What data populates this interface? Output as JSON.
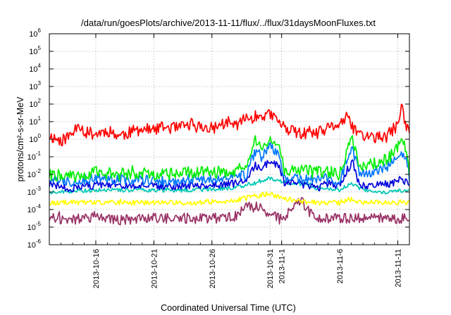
{
  "chart_data": {
    "type": "line",
    "title": "/data/run/goesPlots/archive/2013-11-11/flux/../flux/31daysMoonFluxes.txt",
    "xlabel": "Coordinated Universal Time (UTC)",
    "ylabel": "protons/cm²-s-sr-MeV",
    "yscale": "log",
    "ylim_exponents": [
      -6,
      6
    ],
    "yticks": [
      {
        "base": "10",
        "exp": "-6"
      },
      {
        "base": "10",
        "exp": "-5"
      },
      {
        "base": "10",
        "exp": "-4"
      },
      {
        "base": "10",
        "exp": "-3"
      },
      {
        "base": "10",
        "exp": "-2"
      },
      {
        "base": "10",
        "exp": "-1"
      },
      {
        "base": "10",
        "exp": "0"
      },
      {
        "base": "10",
        "exp": "1"
      },
      {
        "base": "10",
        "exp": "2"
      },
      {
        "base": "10",
        "exp": "3"
      },
      {
        "base": "10",
        "exp": "4"
      },
      {
        "base": "10",
        "exp": "5"
      },
      {
        "base": "10",
        "exp": "6"
      }
    ],
    "xlim_days": [
      0,
      31
    ],
    "xticks": [
      {
        "day": 4,
        "label": "2013-10-16"
      },
      {
        "day": 9,
        "label": "2013-10-21"
      },
      {
        "day": 14,
        "label": "2013-10-26"
      },
      {
        "day": 19,
        "label": "2013-10-31"
      },
      {
        "day": 20,
        "label": "2013-11-1"
      },
      {
        "day": 25,
        "label": "2013-11-6"
      },
      {
        "day": 30,
        "label": "2013-11-11"
      }
    ],
    "grid": true,
    "series": [
      {
        "color": "#ff0000",
        "anchors_log10": [
          [
            0,
            0.2
          ],
          [
            1,
            -0.1
          ],
          [
            2,
            0.3
          ],
          [
            2.5,
            1.0
          ],
          [
            3,
            0.4
          ],
          [
            4,
            0.3
          ],
          [
            5,
            0.5
          ],
          [
            6,
            0.2
          ],
          [
            7,
            0.4
          ],
          [
            8,
            0.6
          ],
          [
            9,
            0.5
          ],
          [
            10,
            0.7
          ],
          [
            11,
            0.6
          ],
          [
            12,
            0.8
          ],
          [
            13,
            0.7
          ],
          [
            14,
            0.6
          ],
          [
            15,
            0.9
          ],
          [
            16,
            0.8
          ],
          [
            17,
            1.2
          ],
          [
            18,
            1.3
          ],
          [
            18.5,
            1.4
          ],
          [
            19.3,
            1.3
          ],
          [
            20,
            0.8
          ],
          [
            21,
            0.4
          ],
          [
            22,
            0.3
          ],
          [
            23,
            0.3
          ],
          [
            24,
            0.6
          ],
          [
            25,
            0.9
          ],
          [
            25.6,
            1.2
          ],
          [
            26,
            0.8
          ],
          [
            26.5,
            0.4
          ],
          [
            27,
            0.2
          ],
          [
            28,
            0.1
          ],
          [
            29,
            0.1
          ],
          [
            29.5,
            0.5
          ],
          [
            30,
            0.8
          ],
          [
            30.4,
            2.0
          ],
          [
            30.6,
            0.9
          ],
          [
            31,
            0.3
          ]
        ],
        "noise": 0.35,
        "seed": 11
      },
      {
        "color": "#00ee00",
        "anchors_log10": [
          [
            0,
            -2.0
          ],
          [
            2,
            -2.1
          ],
          [
            4,
            -1.9
          ],
          [
            6,
            -2.0
          ],
          [
            8,
            -1.9
          ],
          [
            10,
            -2.0
          ],
          [
            12,
            -1.9
          ],
          [
            14,
            -1.9
          ],
          [
            16,
            -1.8
          ],
          [
            17,
            -1.6
          ],
          [
            17.7,
            -0.1
          ],
          [
            18.3,
            -0.6
          ],
          [
            19,
            0.1
          ],
          [
            19.8,
            -0.6
          ],
          [
            20.3,
            -1.9
          ],
          [
            21,
            -1.6
          ],
          [
            22,
            -1.8
          ],
          [
            23,
            -1.9
          ],
          [
            24,
            -1.8
          ],
          [
            25,
            -2.0
          ],
          [
            25.6,
            -0.7
          ],
          [
            26.1,
            -0.1
          ],
          [
            26.7,
            -1.7
          ],
          [
            27.5,
            -1.5
          ],
          [
            28.5,
            -1.3
          ],
          [
            29.5,
            -0.9
          ],
          [
            30.2,
            -0.2
          ],
          [
            30.8,
            -0.5
          ],
          [
            31,
            -2.0
          ]
        ],
        "noise": 0.35,
        "seed": 22
      },
      {
        "color": "#0077ff",
        "anchors_log10": [
          [
            0,
            -2.3
          ],
          [
            2,
            -2.4
          ],
          [
            4,
            -2.2
          ],
          [
            6,
            -2.3
          ],
          [
            8,
            -2.3
          ],
          [
            10,
            -2.4
          ],
          [
            12,
            -2.3
          ],
          [
            14,
            -2.3
          ],
          [
            16,
            -2.1
          ],
          [
            17,
            -2.0
          ],
          [
            17.7,
            -0.7
          ],
          [
            18.3,
            -1.0
          ],
          [
            19,
            -0.4
          ],
          [
            19.8,
            -1.0
          ],
          [
            20.3,
            -2.3
          ],
          [
            21,
            -2.0
          ],
          [
            22,
            -2.3
          ],
          [
            23,
            -2.4
          ],
          [
            24,
            -2.2
          ],
          [
            25,
            -2.4
          ],
          [
            25.6,
            -1.2
          ],
          [
            26.1,
            -0.6
          ],
          [
            26.7,
            -2.0
          ],
          [
            27.5,
            -1.9
          ],
          [
            28.5,
            -1.7
          ],
          [
            29.5,
            -1.4
          ],
          [
            30.2,
            -0.8
          ],
          [
            30.8,
            -1.2
          ],
          [
            31,
            -2.3
          ]
        ],
        "noise": 0.3,
        "seed": 33
      },
      {
        "color": "#0000dd",
        "anchors_log10": [
          [
            0,
            -2.6
          ],
          [
            2,
            -2.8
          ],
          [
            4,
            -2.6
          ],
          [
            6,
            -2.7
          ],
          [
            8,
            -2.6
          ],
          [
            10,
            -2.7
          ],
          [
            12,
            -2.6
          ],
          [
            14,
            -2.6
          ],
          [
            16,
            -2.5
          ],
          [
            17,
            -2.4
          ],
          [
            17.7,
            -1.5
          ],
          [
            18.3,
            -1.6
          ],
          [
            19,
            -1.3
          ],
          [
            19.8,
            -1.6
          ],
          [
            20.3,
            -2.6
          ],
          [
            21,
            -2.4
          ],
          [
            22,
            -2.6
          ],
          [
            23,
            -2.8
          ],
          [
            24,
            -2.5
          ],
          [
            25,
            -2.7
          ],
          [
            25.6,
            -1.8
          ],
          [
            26.1,
            -1.3
          ],
          [
            26.7,
            -2.6
          ],
          [
            27.5,
            -2.7
          ],
          [
            28.5,
            -2.6
          ],
          [
            29.5,
            -2.5
          ],
          [
            30.2,
            -2.3
          ],
          [
            30.8,
            -2.4
          ],
          [
            31,
            -2.6
          ]
        ],
        "noise": 0.22,
        "seed": 44
      },
      {
        "color": "#00c8b4",
        "anchors_log10": [
          [
            0,
            -3.0
          ],
          [
            4,
            -2.9
          ],
          [
            8,
            -2.9
          ],
          [
            12,
            -2.9
          ],
          [
            15,
            -2.8
          ],
          [
            16.5,
            -2.7
          ],
          [
            18,
            -2.4
          ],
          [
            19,
            -2.2
          ],
          [
            20,
            -2.4
          ],
          [
            21,
            -2.6
          ],
          [
            22,
            -2.5
          ],
          [
            23,
            -2.8
          ],
          [
            24,
            -2.8
          ],
          [
            25,
            -2.9
          ],
          [
            26,
            -2.5
          ],
          [
            27,
            -2.9
          ],
          [
            28,
            -3.0
          ],
          [
            29,
            -3.0
          ],
          [
            30,
            -2.9
          ],
          [
            31,
            -3.0
          ]
        ],
        "noise": 0.12,
        "seed": 55
      },
      {
        "color": "#ffff00",
        "anchors_log10": [
          [
            0,
            -3.6
          ],
          [
            4,
            -3.6
          ],
          [
            8,
            -3.6
          ],
          [
            12,
            -3.6
          ],
          [
            16,
            -3.5
          ],
          [
            18,
            -3.2
          ],
          [
            19,
            -3.1
          ],
          [
            20,
            -3.3
          ],
          [
            21,
            -3.5
          ],
          [
            23,
            -3.6
          ],
          [
            25,
            -3.6
          ],
          [
            26,
            -3.4
          ],
          [
            27,
            -3.6
          ],
          [
            29,
            -3.6
          ],
          [
            31,
            -3.6
          ]
        ],
        "noise": 0.15,
        "seed": 66
      },
      {
        "color": "#993366",
        "anchors_log10": [
          [
            0,
            -4.5
          ],
          [
            2,
            -4.6
          ],
          [
            4,
            -4.4
          ],
          [
            6,
            -4.6
          ],
          [
            8,
            -4.5
          ],
          [
            10,
            -4.5
          ],
          [
            12,
            -4.5
          ],
          [
            14,
            -4.5
          ],
          [
            16,
            -4.4
          ],
          [
            17,
            -3.9
          ],
          [
            18,
            -3.8
          ],
          [
            19,
            -4.3
          ],
          [
            20,
            -4.6
          ],
          [
            21,
            -3.8
          ],
          [
            21.8,
            -3.5
          ],
          [
            22.5,
            -4.3
          ],
          [
            23.5,
            -4.5
          ],
          [
            25,
            -4.5
          ],
          [
            27,
            -4.5
          ],
          [
            29,
            -4.5
          ],
          [
            31,
            -4.5
          ]
        ],
        "noise": 0.3,
        "seed": 77
      }
    ]
  }
}
